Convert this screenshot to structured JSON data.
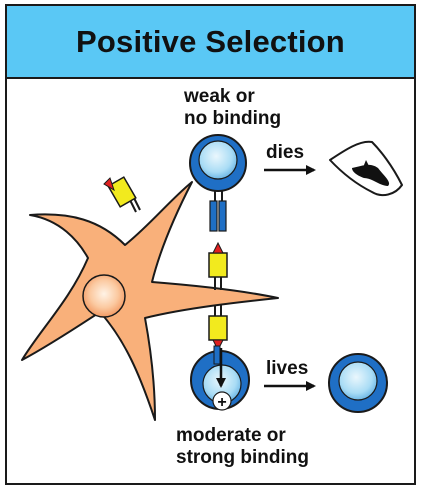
{
  "title": "Positive Selection",
  "labels": {
    "weak_line1": "weak or",
    "weak_line2": "no binding",
    "dies": "dies",
    "lives": "lives",
    "moderate_line1": "moderate or",
    "moderate_line2": "strong binding",
    "plus_sign": "+"
  },
  "colors": {
    "header_bg": "#5ac8f5",
    "cell_blue": "#1f6fc5",
    "cell_light": "#bfe6f8",
    "epithelial_orange": "#f9b07a",
    "receptor_yellow": "#f2ea1e",
    "peptide_red": "#e02020"
  }
}
